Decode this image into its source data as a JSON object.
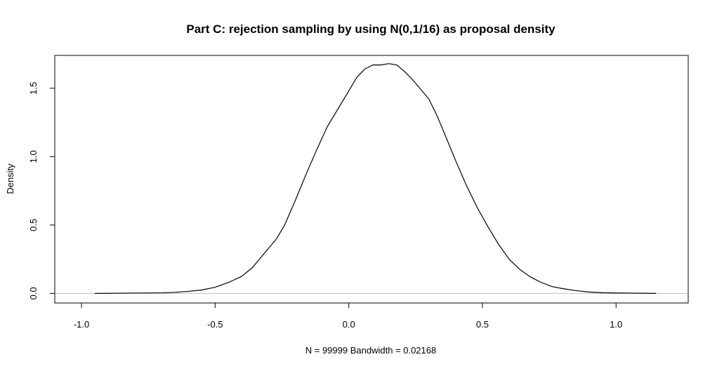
{
  "chart_data": {
    "type": "line",
    "title": "Part C: rejection sampling by using N(0,1/16) as proposal density",
    "xlabel": "N = 99999   Bandwidth = 0.02168",
    "ylabel": "Density",
    "xlim": [
      -1.1,
      1.27
    ],
    "ylim": [
      -0.07,
      1.74
    ],
    "x_ticks": [
      -1.0,
      -0.5,
      0.0,
      0.5,
      1.0
    ],
    "x_tick_labels": [
      "-1.0",
      "-0.5",
      "0.0",
      "0.5",
      "1.0"
    ],
    "y_ticks": [
      0.0,
      0.5,
      1.0,
      1.5
    ],
    "y_tick_labels": [
      "0.0",
      "0.5",
      "1.0",
      "1.5"
    ],
    "reference_line": {
      "y": 0,
      "color": "#bebebe"
    },
    "grid": false,
    "legend": "none",
    "line_color": "#000000",
    "series": [
      {
        "x": [
          -0.95,
          -0.94,
          -0.82,
          -0.7,
          -0.65,
          -0.6,
          -0.55,
          -0.5,
          -0.45,
          -0.4,
          -0.36,
          -0.33,
          -0.3,
          -0.27,
          -0.24,
          -0.2,
          -0.16,
          -0.12,
          -0.08,
          -0.04,
          0.0,
          0.03,
          0.06,
          0.09,
          0.12,
          0.15,
          0.18,
          0.21,
          0.24,
          0.27,
          0.3,
          0.33,
          0.36,
          0.4,
          0.44,
          0.48,
          0.52,
          0.56,
          0.6,
          0.64,
          0.68,
          0.72,
          0.76,
          0.8,
          0.85,
          0.9,
          0.95,
          1.0,
          1.05,
          1.1,
          1.15
        ],
        "y": [
          0.0,
          0.0,
          0.002,
          0.004,
          0.008,
          0.015,
          0.025,
          0.045,
          0.08,
          0.125,
          0.19,
          0.26,
          0.33,
          0.4,
          0.5,
          0.68,
          0.87,
          1.05,
          1.22,
          1.35,
          1.48,
          1.58,
          1.64,
          1.67,
          1.67,
          1.68,
          1.67,
          1.62,
          1.56,
          1.49,
          1.42,
          1.3,
          1.16,
          0.97,
          0.79,
          0.63,
          0.49,
          0.36,
          0.25,
          0.175,
          0.12,
          0.08,
          0.05,
          0.035,
          0.02,
          0.01,
          0.005,
          0.003,
          0.002,
          0.001,
          0.0
        ]
      }
    ]
  }
}
